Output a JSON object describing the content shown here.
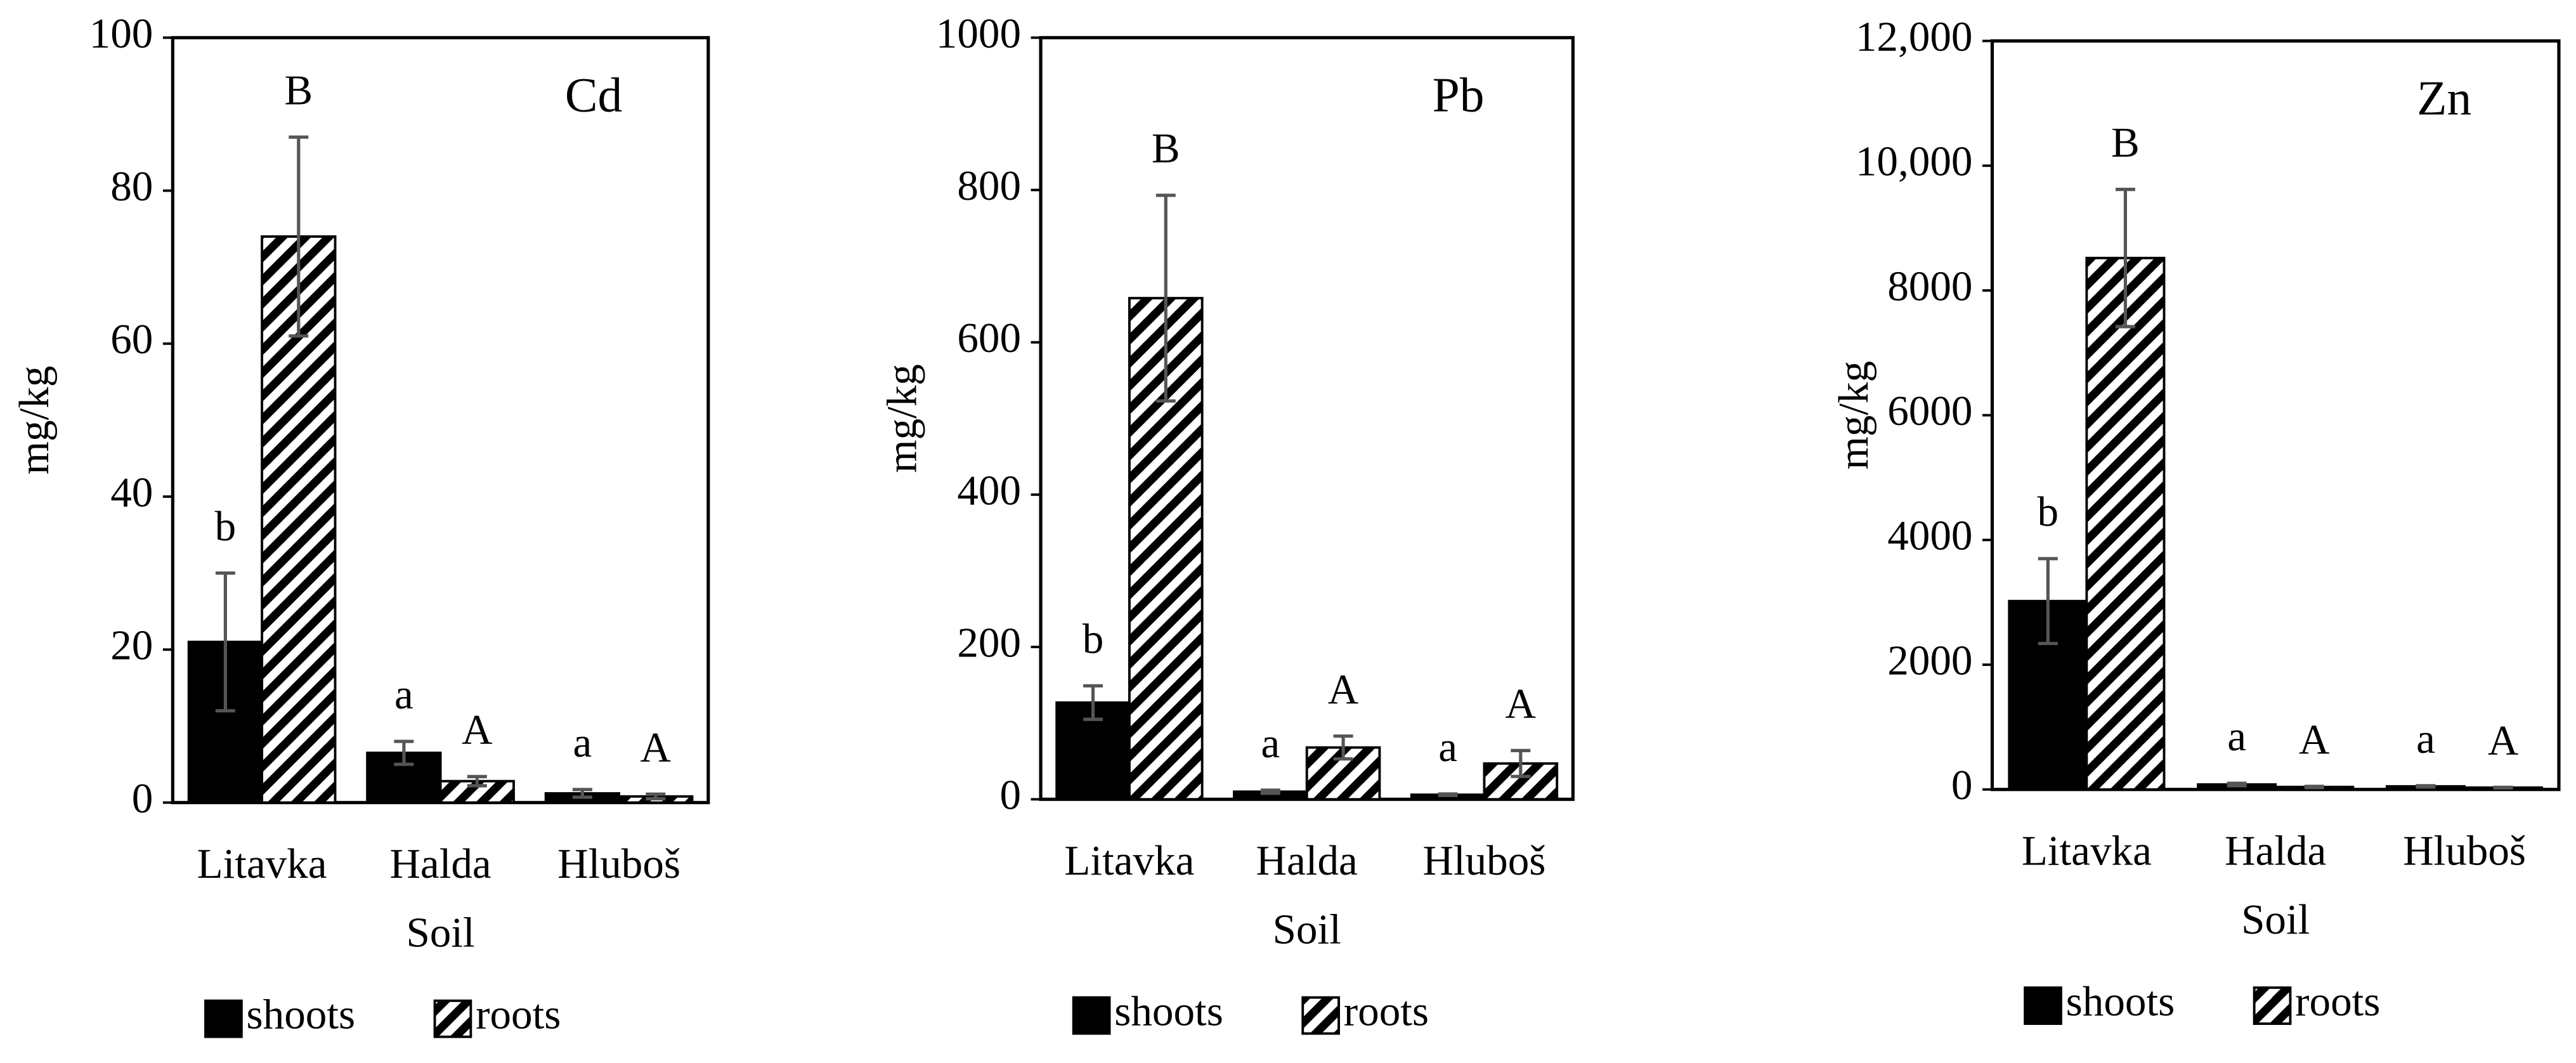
{
  "chart_data": [
    {
      "type": "bar",
      "title": "Cd",
      "ylabel": "mg/kg",
      "xlabel": "Soil",
      "categories": [
        "Litavka",
        "Halda",
        "Hluboš"
      ],
      "series": [
        {
          "name": "shoots",
          "color": "#000000",
          "values": [
            21,
            6.5,
            1.2
          ],
          "errors": [
            9,
            1.5,
            0.5
          ],
          "letters": [
            "b",
            "a",
            "a"
          ]
        },
        {
          "name": "roots",
          "color": "#ffffff",
          "hatch": true,
          "values": [
            74,
            2.8,
            0.8
          ],
          "errors": [
            13,
            0.6,
            0.3
          ],
          "letters": [
            "B",
            "A",
            "A"
          ]
        }
      ],
      "ylim": [
        0,
        100
      ],
      "yticks": [
        0,
        20,
        40,
        60,
        80,
        100
      ]
    },
    {
      "type": "bar",
      "title": "Pb",
      "ylabel": "mg/kg",
      "xlabel": "Soil",
      "categories": [
        "Litavka",
        "Halda",
        "Hluboš"
      ],
      "series": [
        {
          "name": "shoots",
          "color": "#000000",
          "values": [
            127,
            10,
            6
          ],
          "errors": [
            22,
            2,
            1
          ],
          "letters": [
            "b",
            "a",
            "a"
          ]
        },
        {
          "name": "roots",
          "color": "#ffffff",
          "hatch": true,
          "values": [
            658,
            68,
            47
          ],
          "errors": [
            135,
            15,
            17
          ],
          "letters": [
            "B",
            "A",
            "A"
          ]
        }
      ],
      "ylim": [
        0,
        1000
      ],
      "yticks": [
        0,
        200,
        400,
        600,
        800,
        1000
      ]
    },
    {
      "type": "bar",
      "title": "Zn",
      "ylabel": "mg/kg",
      "xlabel": "Soil",
      "categories": [
        "Litavka",
        "Halda",
        "Hluboš"
      ],
      "series": [
        {
          "name": "shoots",
          "color": "#000000",
          "values": [
            3020,
            80,
            50
          ],
          "errors": [
            680,
            20,
            10
          ],
          "letters": [
            "b",
            "a",
            "a"
          ]
        },
        {
          "name": "roots",
          "color": "#ffffff",
          "hatch": true,
          "values": [
            8520,
            40,
            30
          ],
          "errors": [
            1100,
            10,
            5
          ],
          "letters": [
            "B",
            "A",
            "A"
          ]
        }
      ],
      "ylim": [
        0,
        12000
      ],
      "yticks": [
        0,
        2000,
        4000,
        6000,
        8000,
        {
          "value": 10000,
          "label": "10,000"
        },
        {
          "value": 12000,
          "label": "12,000"
        }
      ]
    }
  ]
}
